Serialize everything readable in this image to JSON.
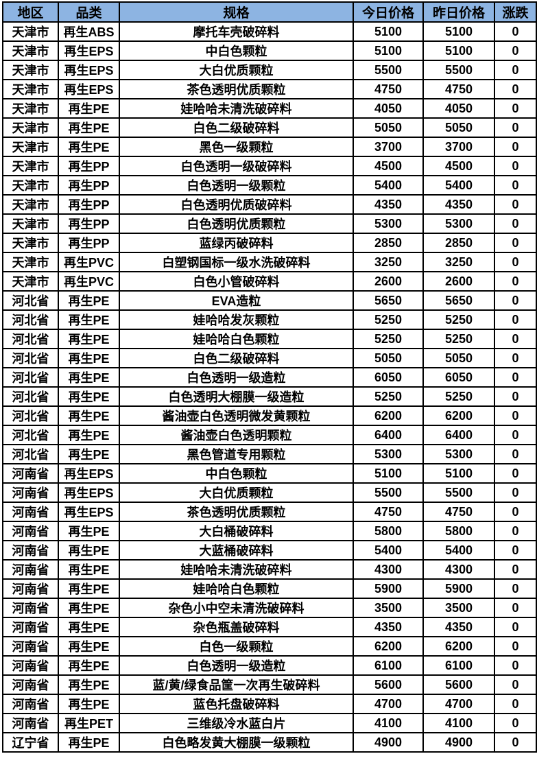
{
  "colors": {
    "header_bg": "#8DB4E2",
    "border": "#000000",
    "text": "#000000",
    "row_bg": "#FFFFFF"
  },
  "chart_data": {
    "type": "table",
    "columns": [
      "地区",
      "品类",
      "规格",
      "今日价格",
      "昨日价格",
      "涨跌"
    ],
    "rows": [
      [
        "天津市",
        "再生ABS",
        "摩托车壳破碎料",
        "5100",
        "5100",
        "0"
      ],
      [
        "天津市",
        "再生EPS",
        "中白色颗粒",
        "5100",
        "5100",
        "0"
      ],
      [
        "天津市",
        "再生EPS",
        "大白优质颗粒",
        "5500",
        "5500",
        "0"
      ],
      [
        "天津市",
        "再生EPS",
        "茶色透明优质颗粒",
        "4750",
        "4750",
        "0"
      ],
      [
        "天津市",
        "再生PE",
        "娃哈哈未清洗破碎料",
        "4050",
        "4050",
        "0"
      ],
      [
        "天津市",
        "再生PE",
        "白色二级破碎料",
        "5050",
        "5050",
        "0"
      ],
      [
        "天津市",
        "再生PE",
        "黑色一级颗粒",
        "3700",
        "3700",
        "0"
      ],
      [
        "天津市",
        "再生PP",
        "白色透明一级破碎料",
        "4500",
        "4500",
        "0"
      ],
      [
        "天津市",
        "再生PP",
        "白色透明一级颗粒",
        "5400",
        "5400",
        "0"
      ],
      [
        "天津市",
        "再生PP",
        "白色透明优质破碎料",
        "4350",
        "4350",
        "0"
      ],
      [
        "天津市",
        "再生PP",
        "白色透明优质颗粒",
        "5300",
        "5300",
        "0"
      ],
      [
        "天津市",
        "再生PP",
        "蓝绿丙破碎料",
        "2850",
        "2850",
        "0"
      ],
      [
        "天津市",
        "再生PVC",
        "白塑钢国标一级水洗破碎料",
        "3250",
        "3250",
        "0"
      ],
      [
        "天津市",
        "再生PVC",
        "白色小管破碎料",
        "2600",
        "2600",
        "0"
      ],
      [
        "河北省",
        "再生PE",
        "EVA造粒",
        "5650",
        "5650",
        "0"
      ],
      [
        "河北省",
        "再生PE",
        "娃哈哈发灰颗粒",
        "5250",
        "5250",
        "0"
      ],
      [
        "河北省",
        "再生PE",
        "娃哈哈白色颗粒",
        "5250",
        "5250",
        "0"
      ],
      [
        "河北省",
        "再生PE",
        "白色二级破碎料",
        "5050",
        "5050",
        "0"
      ],
      [
        "河北省",
        "再生PE",
        "白色透明一级造粒",
        "6050",
        "6050",
        "0"
      ],
      [
        "河北省",
        "再生PE",
        "白色透明大棚膜一级造粒",
        "5250",
        "5250",
        "0"
      ],
      [
        "河北省",
        "再生PE",
        "酱油壶白色透明微发黄颗粒",
        "6200",
        "6200",
        "0"
      ],
      [
        "河北省",
        "再生PE",
        "酱油壶白色透明颗粒",
        "6400",
        "6400",
        "0"
      ],
      [
        "河北省",
        "再生PE",
        "黑色管道专用颗粒",
        "5300",
        "5300",
        "0"
      ],
      [
        "河南省",
        "再生EPS",
        "中白色颗粒",
        "5100",
        "5100",
        "0"
      ],
      [
        "河南省",
        "再生EPS",
        "大白优质颗粒",
        "5500",
        "5500",
        "0"
      ],
      [
        "河南省",
        "再生EPS",
        "茶色透明优质颗粒",
        "4750",
        "4750",
        "0"
      ],
      [
        "河南省",
        "再生PE",
        "大白桶破碎料",
        "5800",
        "5800",
        "0"
      ],
      [
        "河南省",
        "再生PE",
        "大蓝桶破碎料",
        "5400",
        "5400",
        "0"
      ],
      [
        "河南省",
        "再生PE",
        "娃哈哈未清洗破碎料",
        "4300",
        "4300",
        "0"
      ],
      [
        "河南省",
        "再生PE",
        "娃哈哈白色颗粒",
        "5900",
        "5900",
        "0"
      ],
      [
        "河南省",
        "再生PE",
        "杂色小中空未清洗破碎料",
        "3500",
        "3500",
        "0"
      ],
      [
        "河南省",
        "再生PE",
        "杂色瓶盖破碎料",
        "4350",
        "4350",
        "0"
      ],
      [
        "河南省",
        "再生PE",
        "白色一级颗粒",
        "6200",
        "6200",
        "0"
      ],
      [
        "河南省",
        "再生PE",
        "白色透明一级造粒",
        "6100",
        "6100",
        "0"
      ],
      [
        "河南省",
        "再生PE",
        "蓝/黄/绿食品筐一次再生破碎料",
        "5600",
        "5600",
        "0"
      ],
      [
        "河南省",
        "再生PE",
        "蓝色托盘破碎料",
        "4700",
        "4700",
        "0"
      ],
      [
        "河南省",
        "再生PET",
        "三维级冷水蓝白片",
        "4100",
        "4100",
        "0"
      ],
      [
        "辽宁省",
        "再生PE",
        "白色略发黄大棚膜一级颗粒",
        "4900",
        "4900",
        "0"
      ]
    ]
  }
}
